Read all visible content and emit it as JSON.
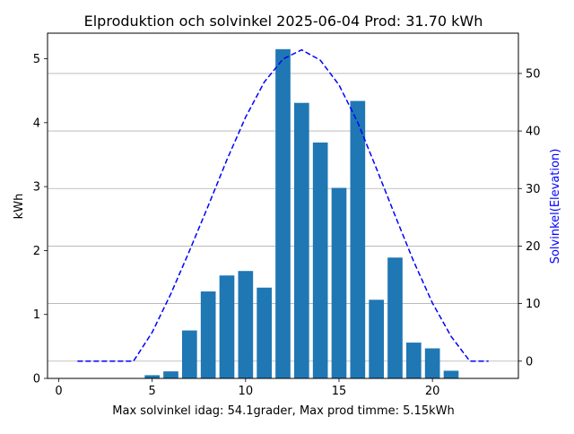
{
  "chart_data": {
    "type": "bar",
    "title": "Elproduktion och solvinkel 2025-06-04 Prod: 31.70 kWh",
    "xlabel": "Max solvinkel idag: 54.1grader, Max prod timme: 5.15kWh",
    "ylabel": "kWh",
    "y2label": "Solvinkel(Elevation)",
    "xlim": [
      -0.6,
      24.6
    ],
    "ylim": [
      0,
      5.4
    ],
    "y2lim": [
      -3,
      57
    ],
    "x_ticks": [
      0,
      5,
      10,
      15,
      20
    ],
    "y_ticks": [
      0,
      1,
      2,
      3,
      4,
      5
    ],
    "y2_ticks": [
      0,
      10,
      20,
      30,
      40,
      50
    ],
    "grid": "horizontal lines on secondary axis",
    "bar_series": {
      "name": "Elproduktion",
      "color": "#1f77b4",
      "points": [
        {
          "x": 5,
          "y": 0.05
        },
        {
          "x": 6,
          "y": 0.11
        },
        {
          "x": 7,
          "y": 0.75
        },
        {
          "x": 8,
          "y": 1.36
        },
        {
          "x": 9,
          "y": 1.61
        },
        {
          "x": 10,
          "y": 1.68
        },
        {
          "x": 11,
          "y": 1.42
        },
        {
          "x": 12,
          "y": 5.15
        },
        {
          "x": 13,
          "y": 4.31
        },
        {
          "x": 14,
          "y": 3.69
        },
        {
          "x": 15,
          "y": 2.98
        },
        {
          "x": 16,
          "y": 4.34
        },
        {
          "x": 17,
          "y": 1.23
        },
        {
          "x": 18,
          "y": 1.89
        },
        {
          "x": 19,
          "y": 0.56
        },
        {
          "x": 20,
          "y": 0.47
        },
        {
          "x": 21,
          "y": 0.12
        }
      ]
    },
    "line_series": {
      "name": "Solvinkel",
      "color": "#0000ff",
      "style": "dashed",
      "points": [
        {
          "x": 1,
          "y": 0
        },
        {
          "x": 2,
          "y": 0
        },
        {
          "x": 3,
          "y": 0
        },
        {
          "x": 4,
          "y": 0
        },
        {
          "x": 5,
          "y": 5
        },
        {
          "x": 6,
          "y": 11.7
        },
        {
          "x": 7,
          "y": 19.2
        },
        {
          "x": 8,
          "y": 27
        },
        {
          "x": 9,
          "y": 35
        },
        {
          "x": 10,
          "y": 42.4
        },
        {
          "x": 11,
          "y": 48.5
        },
        {
          "x": 12,
          "y": 52.5
        },
        {
          "x": 13,
          "y": 54.1
        },
        {
          "x": 14,
          "y": 52.3
        },
        {
          "x": 15,
          "y": 48
        },
        {
          "x": 16,
          "y": 41.5
        },
        {
          "x": 17,
          "y": 33.5
        },
        {
          "x": 18,
          "y": 25.3
        },
        {
          "x": 19,
          "y": 17.3
        },
        {
          "x": 20,
          "y": 10.1
        },
        {
          "x": 21,
          "y": 4.3
        },
        {
          "x": 22,
          "y": 0
        },
        {
          "x": 23,
          "y": 0
        }
      ]
    }
  }
}
